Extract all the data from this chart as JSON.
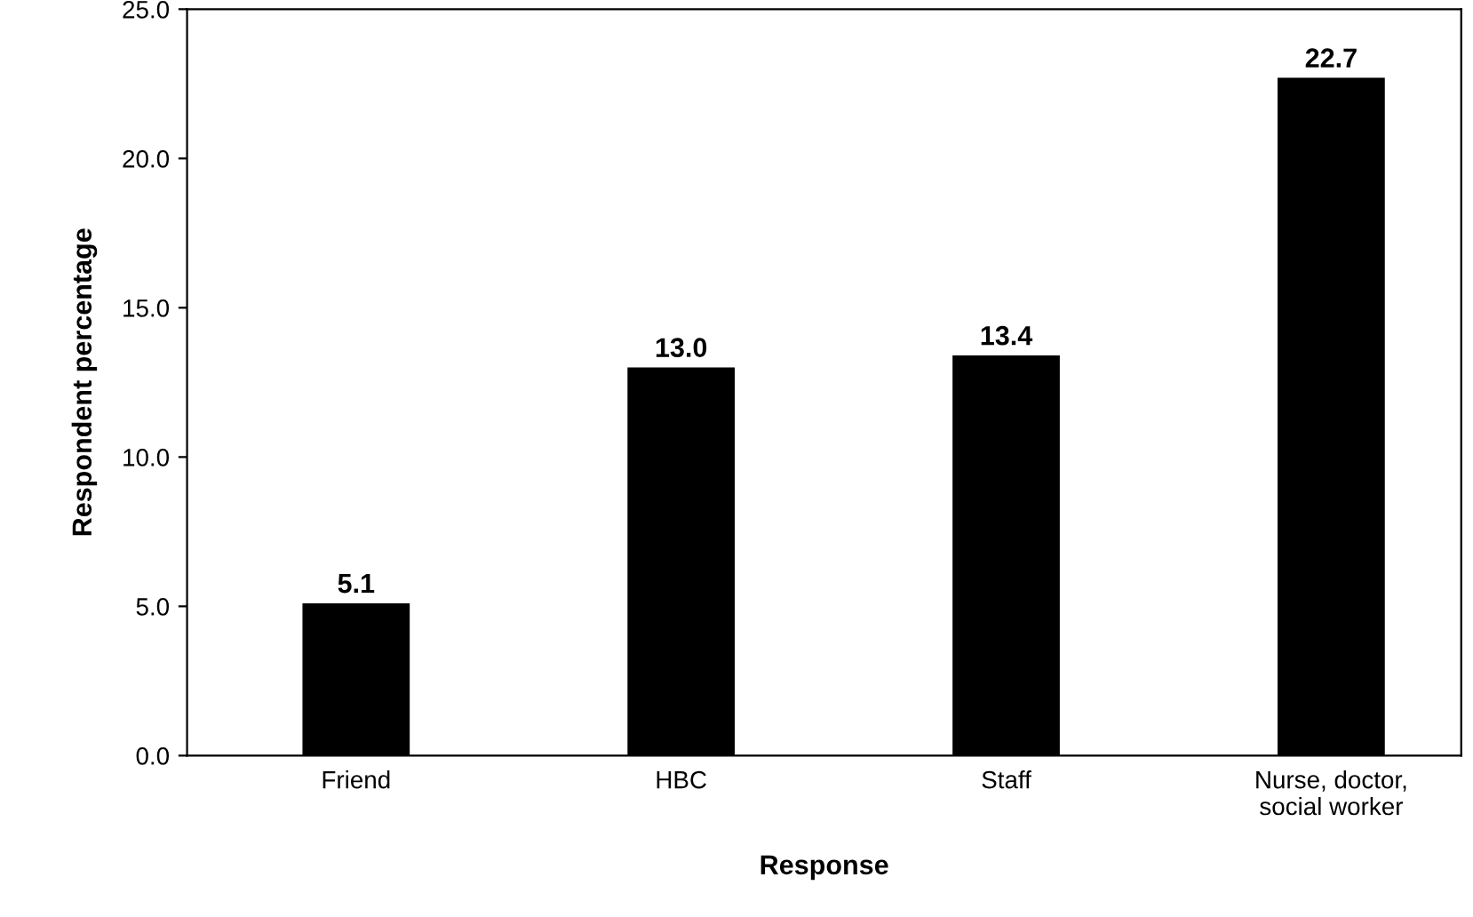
{
  "chart_data": {
    "type": "bar",
    "xlabel": "Response",
    "ylabel": "Respondent percentage",
    "categories": [
      "Friend",
      "HBC",
      "Staff",
      "Nurse, doctor,\nsocial worker"
    ],
    "values": [
      5.1,
      13.0,
      13.4,
      22.7
    ],
    "value_labels": [
      "5.1",
      "13.0",
      "13.4",
      "22.7"
    ],
    "color": "#000000",
    "ylim": [
      0,
      25
    ],
    "yticks": [
      {
        "value": 0,
        "label": "0.0"
      },
      {
        "value": 5,
        "label": "5.0"
      },
      {
        "value": 10,
        "label": "10.0"
      },
      {
        "value": 15,
        "label": "15.0"
      },
      {
        "value": 20,
        "label": "20.0"
      },
      {
        "value": 25,
        "label": "25.0"
      }
    ],
    "grid": false,
    "legend": false
  }
}
